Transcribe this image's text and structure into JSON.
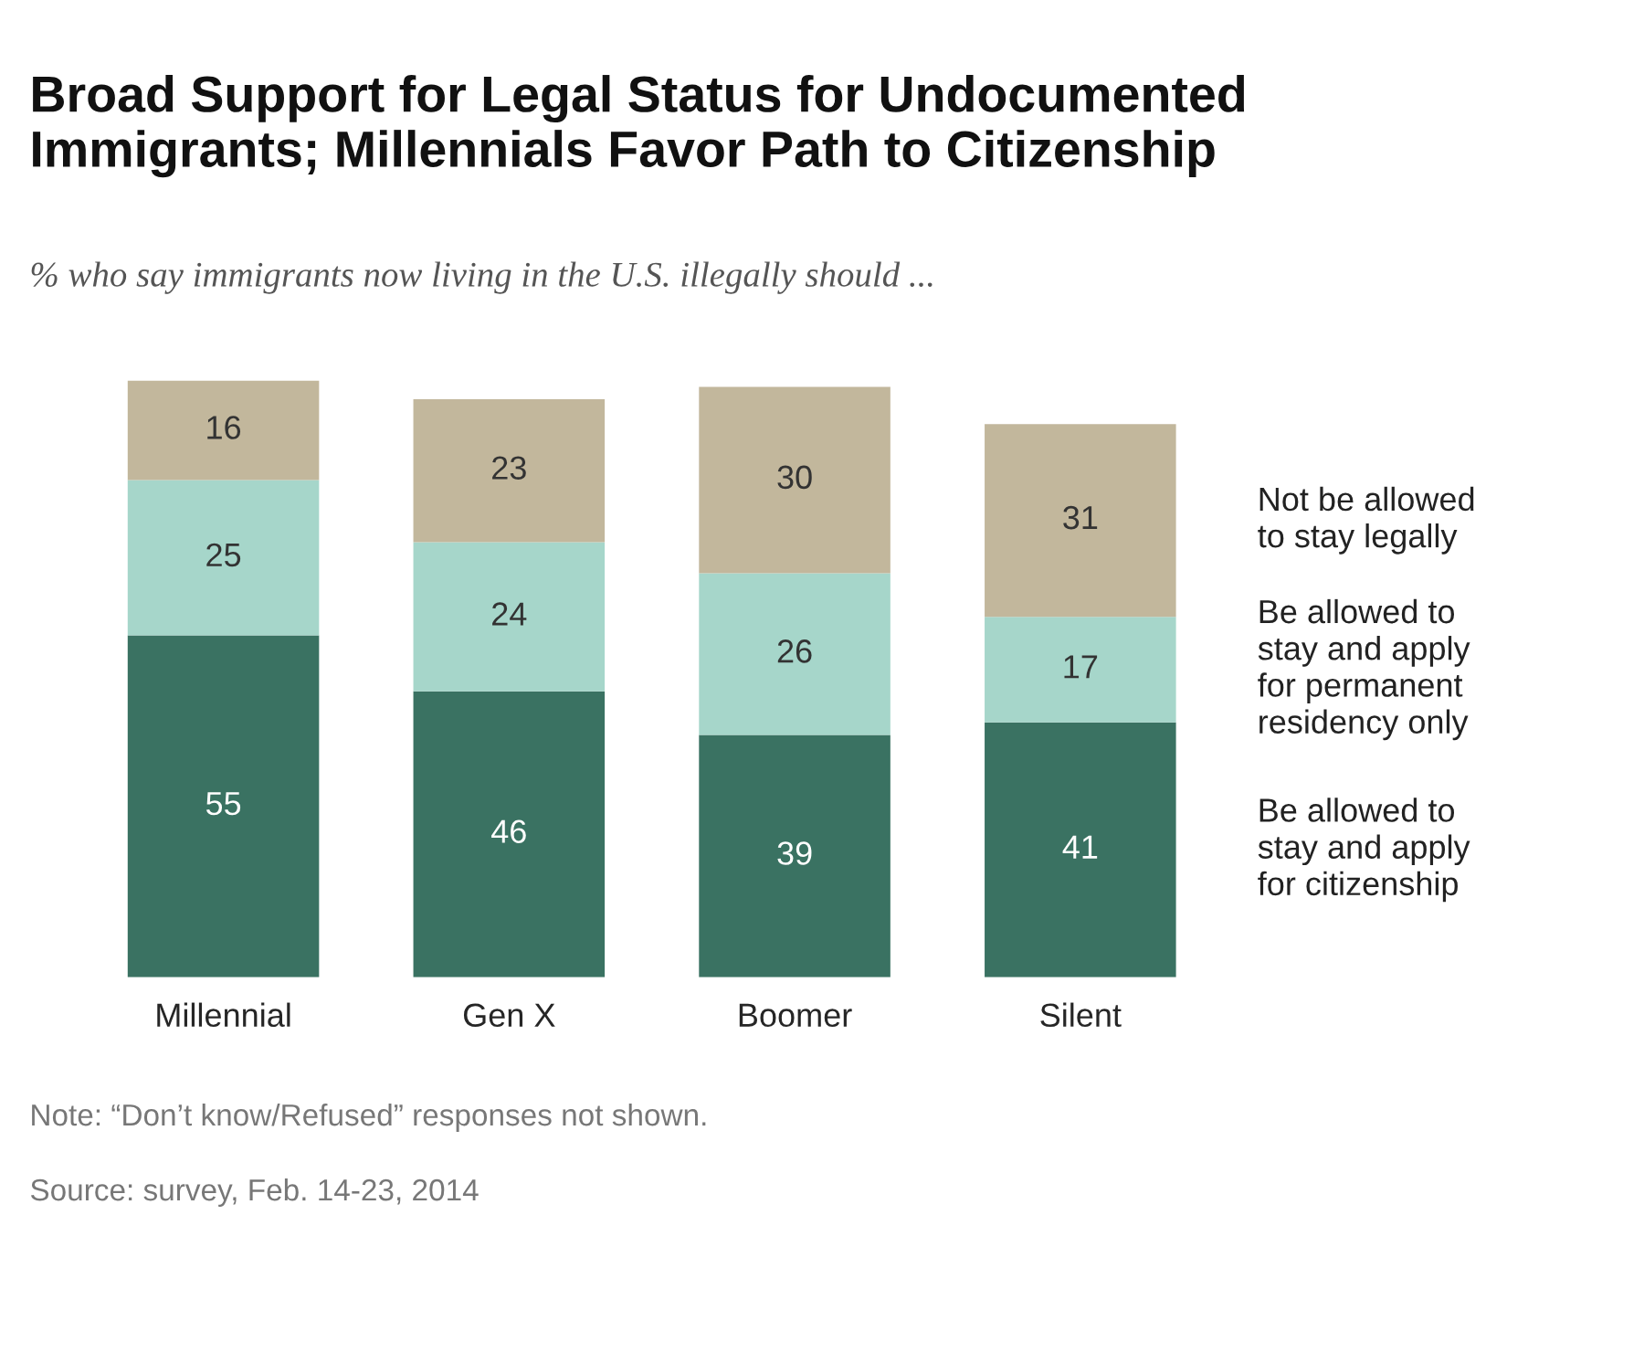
{
  "chart_data": {
    "type": "bar",
    "stacked": true,
    "title": "Broad Support for Legal Status for Undocumented\nImmigrants; Millennials Favor Path to Citizenship",
    "subtitle": "% who say immigrants now living in the U.S. illegally should ...",
    "categories": [
      "Millennial",
      "Gen X",
      "Boomer",
      "Silent"
    ],
    "series": [
      {
        "name": "Be allowed to\nstay and apply\nfor citizenship",
        "color": "#3a7262",
        "values": [
          55,
          46,
          39,
          41
        ]
      },
      {
        "name": "Be allowed to\nstay and apply\nfor permanent\nresidency only",
        "color": "#a6d6ca",
        "values": [
          25,
          24,
          26,
          17
        ]
      },
      {
        "name": "Not be allowed\nto stay legally",
        "color": "#c2b79c",
        "values": [
          16,
          23,
          30,
          31
        ]
      }
    ],
    "tick_labels": "x",
    "data_labels": true,
    "grid": false,
    "annotations": [
      "Note: “Don’t know/Refused” responses not shown.",
      "Source: survey, Feb. 14-23, 2014"
    ]
  }
}
